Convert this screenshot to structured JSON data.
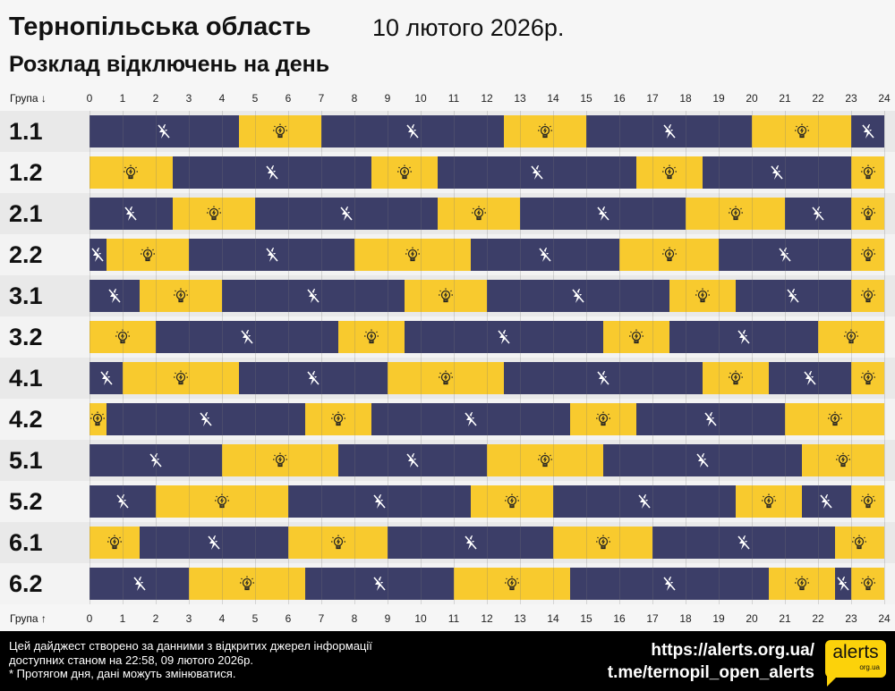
{
  "header": {
    "title": "Тернопільська область",
    "date": "10 лютого 2026р.",
    "subtitle": "Розклад відключень на день"
  },
  "axis": {
    "top_label": "Група ↓",
    "bottom_label": "Група ↑",
    "ticks": [
      "0",
      "1",
      "2",
      "3",
      "4",
      "5",
      "6",
      "7",
      "8",
      "9",
      "10",
      "11",
      "12",
      "13",
      "14",
      "15",
      "16",
      "17",
      "18",
      "19",
      "20",
      "21",
      "22",
      "23",
      "24"
    ]
  },
  "colors": {
    "off": "#3c3e68",
    "on": "#f8ca2e"
  },
  "icons": {
    "off": "power-off-bolt-icon",
    "on": "light-bulb-icon"
  },
  "chart_data": {
    "type": "table",
    "xlim": [
      0,
      24
    ],
    "unit": "hour",
    "groups": [
      {
        "name": "1.1",
        "segments": [
          [
            "off",
            0,
            4.5
          ],
          [
            "on",
            4.5,
            7
          ],
          [
            "off",
            7,
            12.5
          ],
          [
            "on",
            12.5,
            15
          ],
          [
            "off",
            15,
            20
          ],
          [
            "on",
            20,
            23
          ],
          [
            "off",
            23,
            24
          ]
        ]
      },
      {
        "name": "1.2",
        "segments": [
          [
            "on",
            0,
            2.5
          ],
          [
            "off",
            2.5,
            8.5
          ],
          [
            "on",
            8.5,
            10.5
          ],
          [
            "off",
            10.5,
            16.5
          ],
          [
            "on",
            16.5,
            18.5
          ],
          [
            "off",
            18.5,
            23
          ],
          [
            "on",
            23,
            24
          ]
        ]
      },
      {
        "name": "2.1",
        "segments": [
          [
            "off",
            0,
            2.5
          ],
          [
            "on",
            2.5,
            5
          ],
          [
            "off",
            5,
            10.5
          ],
          [
            "on",
            10.5,
            13
          ],
          [
            "off",
            13,
            18
          ],
          [
            "on",
            18,
            21
          ],
          [
            "off",
            21,
            23
          ],
          [
            "on",
            23,
            24
          ]
        ]
      },
      {
        "name": "2.2",
        "segments": [
          [
            "off",
            0,
            0.5
          ],
          [
            "on",
            0.5,
            3
          ],
          [
            "off",
            3,
            8
          ],
          [
            "on",
            8,
            11.5
          ],
          [
            "off",
            11.5,
            16
          ],
          [
            "on",
            16,
            19
          ],
          [
            "off",
            19,
            23
          ],
          [
            "on",
            23,
            24
          ]
        ]
      },
      {
        "name": "3.1",
        "segments": [
          [
            "off",
            0,
            1.5
          ],
          [
            "on",
            1.5,
            4
          ],
          [
            "off",
            4,
            9.5
          ],
          [
            "on",
            9.5,
            12
          ],
          [
            "off",
            12,
            17.5
          ],
          [
            "on",
            17.5,
            19.5
          ],
          [
            "off",
            19.5,
            23
          ],
          [
            "on",
            23,
            24
          ]
        ]
      },
      {
        "name": "3.2",
        "segments": [
          [
            "on",
            0,
            2
          ],
          [
            "off",
            2,
            7.5
          ],
          [
            "on",
            7.5,
            9.5
          ],
          [
            "off",
            9.5,
            15.5
          ],
          [
            "on",
            15.5,
            17.5
          ],
          [
            "off",
            17.5,
            22
          ],
          [
            "on",
            22,
            24
          ]
        ]
      },
      {
        "name": "4.1",
        "segments": [
          [
            "off",
            0,
            1
          ],
          [
            "on",
            1,
            4.5
          ],
          [
            "off",
            4.5,
            9
          ],
          [
            "on",
            9,
            12.5
          ],
          [
            "off",
            12.5,
            18.5
          ],
          [
            "on",
            18.5,
            20.5
          ],
          [
            "off",
            20.5,
            23
          ],
          [
            "on",
            23,
            24
          ]
        ]
      },
      {
        "name": "4.2",
        "segments": [
          [
            "on",
            0,
            0.5
          ],
          [
            "off",
            0.5,
            6.5
          ],
          [
            "on",
            6.5,
            8.5
          ],
          [
            "off",
            8.5,
            14.5
          ],
          [
            "on",
            14.5,
            16.5
          ],
          [
            "off",
            16.5,
            21
          ],
          [
            "on",
            21,
            24
          ]
        ]
      },
      {
        "name": "5.1",
        "segments": [
          [
            "off",
            0,
            4
          ],
          [
            "on",
            4,
            7.5
          ],
          [
            "off",
            7.5,
            12
          ],
          [
            "on",
            12,
            15.5
          ],
          [
            "off",
            15.5,
            21.5
          ],
          [
            "on",
            21.5,
            24
          ]
        ]
      },
      {
        "name": "5.2",
        "segments": [
          [
            "off",
            0,
            2
          ],
          [
            "on",
            2,
            6
          ],
          [
            "off",
            6,
            11.5
          ],
          [
            "on",
            11.5,
            14
          ],
          [
            "off",
            14,
            19.5
          ],
          [
            "on",
            19.5,
            21.5
          ],
          [
            "off",
            21.5,
            23
          ],
          [
            "on",
            23,
            24
          ]
        ]
      },
      {
        "name": "6.1",
        "segments": [
          [
            "on",
            0,
            1.5
          ],
          [
            "off",
            1.5,
            6
          ],
          [
            "on",
            6,
            9
          ],
          [
            "off",
            9,
            14
          ],
          [
            "on",
            14,
            17
          ],
          [
            "off",
            17,
            22.5
          ],
          [
            "on",
            22.5,
            24
          ]
        ]
      },
      {
        "name": "6.2",
        "segments": [
          [
            "off",
            0,
            3
          ],
          [
            "on",
            3,
            6.5
          ],
          [
            "off",
            6.5,
            11
          ],
          [
            "on",
            11,
            14.5
          ],
          [
            "off",
            14.5,
            20.5
          ],
          [
            "on",
            20.5,
            22.5
          ],
          [
            "off",
            22.5,
            23
          ],
          [
            "on",
            23,
            24
          ]
        ]
      }
    ]
  },
  "footer": {
    "note_lines": [
      "Цей дайджест створено за данними з відкритих джерел інформації",
      "доступних станом на 22:58, 09 лютого 2026р.",
      "* Протягом дня, дані можуть змінюватися."
    ],
    "site_link": "https://alerts.org.ua/",
    "telegram_link": "t.me/ternopil_open_alerts",
    "logo_text": "alerts",
    "logo_sub": "org.ua"
  }
}
